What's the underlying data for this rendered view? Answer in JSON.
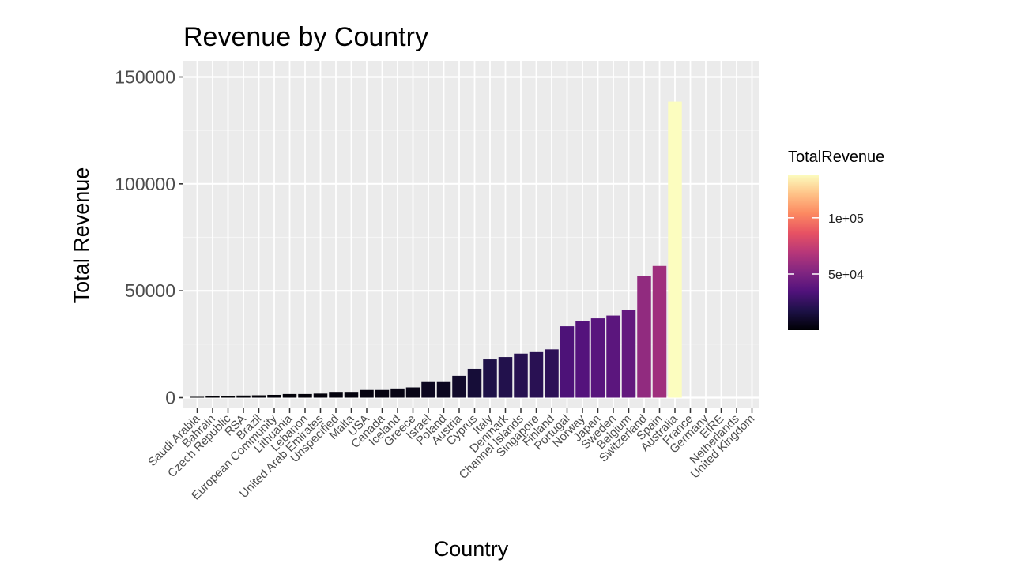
{
  "chart_data": {
    "type": "bar",
    "title": "Revenue by Country",
    "xlabel": "Country",
    "ylabel": "Total Revenue",
    "categories": [
      "Saudi Arabia",
      "Bahrain",
      "Czech Republic",
      "RSA",
      "Brazil",
      "European Community",
      "Lithuania",
      "Lebanon",
      "United Arab Emirates",
      "Unspecified",
      "Malta",
      "USA",
      "Canada",
      "Iceland",
      "Greece",
      "Israel",
      "Poland",
      "Austria",
      "Cyprus",
      "Italy",
      "Denmark",
      "Channel Islands",
      "Singapore",
      "Finland",
      "Portugal",
      "Norway",
      "Japan",
      "Sweden",
      "Belgium",
      "Switzerland",
      "Spain",
      "Australia",
      "France",
      "Germany",
      "EIRE",
      "Netherlands",
      "United Kingdom"
    ],
    "values": [
      130,
      550,
      710,
      1000,
      1100,
      1300,
      1700,
      1700,
      1900,
      2700,
      2700,
      3600,
      3600,
      4300,
      4800,
      7300,
      7300,
      10200,
      13500,
      17900,
      19000,
      20600,
      21300,
      22600,
      33400,
      35900,
      37100,
      38400,
      41000,
      56900,
      61600,
      138500,
      0,
      0,
      0,
      0,
      0
    ],
    "ylim": [
      0,
      150000
    ],
    "yticks": [
      "0",
      "50000",
      "100000",
      "150000"
    ],
    "ytick_values": [
      0,
      50000,
      100000,
      150000
    ],
    "grid": true,
    "legend": {
      "title": "TotalRevenue",
      "placement": "right",
      "labels": [
        "1e+05",
        "5e+04"
      ],
      "label_values": [
        100000,
        50000
      ],
      "scale": "magma"
    },
    "color_stops": [
      "#000004",
      "#1d1147",
      "#51127c",
      "#822681",
      "#b73779",
      "#e75263",
      "#fc8961",
      "#fec287",
      "#fcfdbf"
    ]
  }
}
